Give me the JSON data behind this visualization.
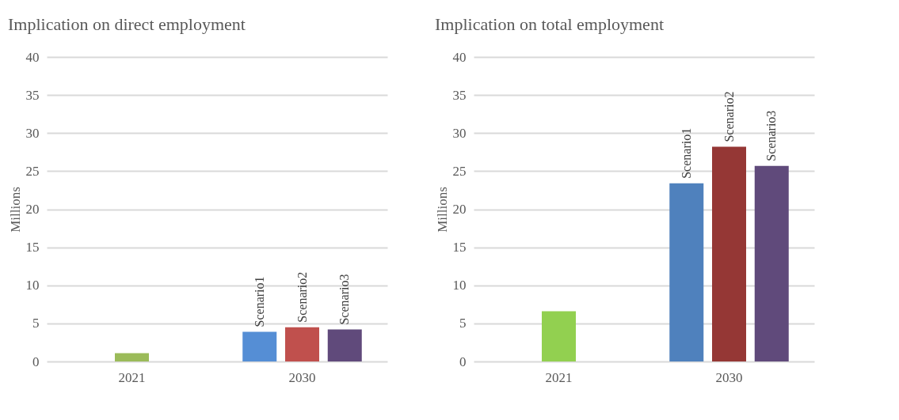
{
  "chart_data": [
    {
      "type": "bar",
      "title": "Implication on direct employment",
      "ylabel": "Millions",
      "categories": [
        "2021",
        "2030"
      ],
      "series": [
        {
          "color": "#9bbb59",
          "values": [
            1.1,
            null
          ]
        },
        {
          "name": "Scenario1",
          "color": "#558ed5",
          "values": [
            null,
            3.9
          ]
        },
        {
          "name": "Scenario2",
          "color": "#c0504d",
          "values": [
            null,
            4.5
          ]
        },
        {
          "name": "Scenario3",
          "color": "#604a7b",
          "values": [
            null,
            4.2
          ]
        }
      ],
      "ylim": [
        0,
        40
      ],
      "yticks": [
        0,
        5,
        10,
        15,
        20,
        25,
        30,
        35,
        40
      ],
      "grid": "y",
      "legend": false
    },
    {
      "type": "bar",
      "title": "Implication on total employment",
      "ylabel": "Millions",
      "categories": [
        "2021",
        "2030"
      ],
      "series": [
        {
          "color": "#92d050",
          "values": [
            6.6,
            null
          ]
        },
        {
          "name": "Scenario1",
          "color": "#4f81bd",
          "values": [
            null,
            23.4
          ]
        },
        {
          "name": "Scenario2",
          "color": "#953735",
          "values": [
            null,
            28.2
          ]
        },
        {
          "name": "Scenario3",
          "color": "#604a7b",
          "values": [
            null,
            25.7
          ]
        }
      ],
      "ylim": [
        0,
        40
      ],
      "yticks": [
        0,
        5,
        10,
        15,
        20,
        25,
        30,
        35,
        40
      ],
      "grid": "y",
      "legend": false
    }
  ]
}
